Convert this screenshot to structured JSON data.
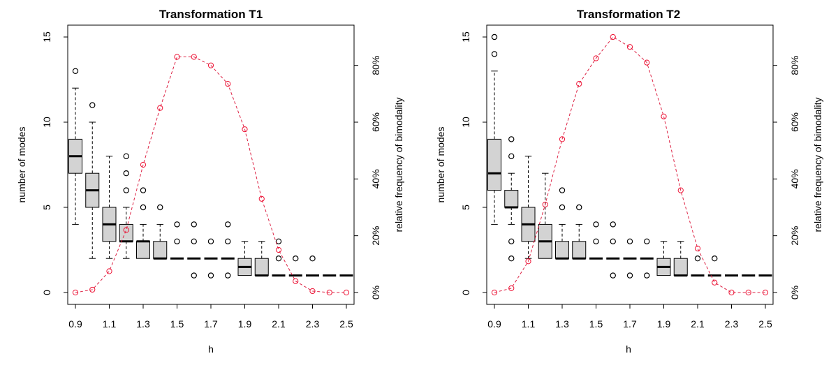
{
  "chart_data": [
    {
      "type": "boxplot+line",
      "title": "Transformation T1",
      "xlabel": "h",
      "ylabel_left": "number of modes",
      "ylabel_right": "relative frequency of bimodality",
      "x_ticks": [
        "0.9",
        "1.1",
        "1.3",
        "1.5",
        "1.7",
        "1.9",
        "2.1",
        "2.3",
        "2.5"
      ],
      "y_ticks_left": [
        "0",
        "5",
        "10",
        "15"
      ],
      "y_ticks_right": [
        "0%",
        "20%",
        "40%",
        "60%",
        "80%"
      ],
      "ylim_left": [
        0,
        15
      ],
      "ylim_right": [
        0,
        90
      ],
      "boxes": [
        {
          "h": 0.9,
          "whisker_low": 4,
          "q1": 7,
          "median": 8,
          "q3": 9,
          "whisker_high": 12,
          "outliers": [
            13
          ]
        },
        {
          "h": 1.0,
          "whisker_low": 2,
          "q1": 5,
          "median": 6,
          "q3": 7,
          "whisker_high": 10,
          "outliers": [
            11
          ]
        },
        {
          "h": 1.1,
          "whisker_low": 2,
          "q1": 3,
          "median": 4,
          "q3": 5,
          "whisker_high": 8,
          "outliers": []
        },
        {
          "h": 1.2,
          "whisker_low": 2,
          "q1": 3,
          "median": 3,
          "q3": 4,
          "whisker_high": 5,
          "outliers": [
            6,
            7,
            8
          ]
        },
        {
          "h": 1.3,
          "whisker_low": 2,
          "q1": 2,
          "median": 3,
          "q3": 3,
          "whisker_high": 4,
          "outliers": [
            5,
            6
          ]
        },
        {
          "h": 1.4,
          "whisker_low": 2,
          "q1": 2,
          "median": 2,
          "q3": 3,
          "whisker_high": 4,
          "outliers": [
            5
          ]
        },
        {
          "h": 1.5,
          "whisker_low": 2,
          "q1": 2,
          "median": 2,
          "q3": 2,
          "whisker_high": 2,
          "outliers": [
            3,
            4
          ]
        },
        {
          "h": 1.6,
          "whisker_low": 2,
          "q1": 2,
          "median": 2,
          "q3": 2,
          "whisker_high": 2,
          "outliers": [
            1,
            3,
            4
          ]
        },
        {
          "h": 1.7,
          "whisker_low": 2,
          "q1": 2,
          "median": 2,
          "q3": 2,
          "whisker_high": 2,
          "outliers": [
            1,
            3
          ]
        },
        {
          "h": 1.8,
          "whisker_low": 2,
          "q1": 2,
          "median": 2,
          "q3": 2,
          "whisker_high": 2,
          "outliers": [
            1,
            3,
            4
          ]
        },
        {
          "h": 1.9,
          "whisker_low": 1,
          "q1": 1,
          "median": 1.5,
          "q3": 2,
          "whisker_high": 3,
          "outliers": []
        },
        {
          "h": 2.0,
          "whisker_low": 1,
          "q1": 1,
          "median": 1,
          "q3": 2,
          "whisker_high": 3,
          "outliers": []
        },
        {
          "h": 2.1,
          "whisker_low": 1,
          "q1": 1,
          "median": 1,
          "q3": 1,
          "whisker_high": 1,
          "outliers": [
            2,
            3
          ]
        },
        {
          "h": 2.2,
          "whisker_low": 1,
          "q1": 1,
          "median": 1,
          "q3": 1,
          "whisker_high": 1,
          "outliers": [
            2
          ]
        },
        {
          "h": 2.3,
          "whisker_low": 1,
          "q1": 1,
          "median": 1,
          "q3": 1,
          "whisker_high": 1,
          "outliers": [
            2
          ]
        },
        {
          "h": 2.4,
          "whisker_low": 1,
          "q1": 1,
          "median": 1,
          "q3": 1,
          "whisker_high": 1,
          "outliers": []
        },
        {
          "h": 2.5,
          "whisker_low": 1,
          "q1": 1,
          "median": 1,
          "q3": 1,
          "whisker_high": 1,
          "outliers": []
        }
      ],
      "bimodality": [
        {
          "h": 0.9,
          "pct": 0
        },
        {
          "h": 1.0,
          "pct": 1
        },
        {
          "h": 1.1,
          "pct": 7.5
        },
        {
          "h": 1.2,
          "pct": 22
        },
        {
          "h": 1.3,
          "pct": 45
        },
        {
          "h": 1.4,
          "pct": 65
        },
        {
          "h": 1.5,
          "pct": 83
        },
        {
          "h": 1.6,
          "pct": 83
        },
        {
          "h": 1.7,
          "pct": 80
        },
        {
          "h": 1.8,
          "pct": 73.5
        },
        {
          "h": 1.9,
          "pct": 57.5
        },
        {
          "h": 2.0,
          "pct": 33
        },
        {
          "h": 2.1,
          "pct": 15
        },
        {
          "h": 2.2,
          "pct": 4
        },
        {
          "h": 2.3,
          "pct": 0.5
        },
        {
          "h": 2.4,
          "pct": 0
        },
        {
          "h": 2.5,
          "pct": 0
        }
      ]
    },
    {
      "type": "boxplot+line",
      "title": "Transformation T2",
      "xlabel": "h",
      "ylabel_left": "number of modes",
      "ylabel_right": "relative frequency of bimodality",
      "x_ticks": [
        "0.9",
        "1.1",
        "1.3",
        "1.5",
        "1.7",
        "1.9",
        "2.1",
        "2.3",
        "2.5"
      ],
      "y_ticks_left": [
        "0",
        "5",
        "10",
        "15"
      ],
      "y_ticks_right": [
        "0%",
        "20%",
        "40%",
        "60%",
        "80%"
      ],
      "ylim_left": [
        0,
        15
      ],
      "ylim_right": [
        0,
        90
      ],
      "boxes": [
        {
          "h": 0.9,
          "whisker_low": 4,
          "q1": 6,
          "median": 7,
          "q3": 9,
          "whisker_high": 13,
          "outliers": [
            14,
            15
          ]
        },
        {
          "h": 1.0,
          "whisker_low": 4,
          "q1": 5,
          "median": 5,
          "q3": 6,
          "whisker_high": 7,
          "outliers": [
            2,
            3,
            8,
            9
          ]
        },
        {
          "h": 1.1,
          "whisker_low": 2,
          "q1": 3,
          "median": 4,
          "q3": 5,
          "whisker_high": 8,
          "outliers": []
        },
        {
          "h": 1.2,
          "whisker_low": 2,
          "q1": 2,
          "median": 3,
          "q3": 4,
          "whisker_high": 7,
          "outliers": []
        },
        {
          "h": 1.3,
          "whisker_low": 2,
          "q1": 2,
          "median": 2,
          "q3": 3,
          "whisker_high": 4,
          "outliers": [
            5,
            6
          ]
        },
        {
          "h": 1.4,
          "whisker_low": 2,
          "q1": 2,
          "median": 2,
          "q3": 3,
          "whisker_high": 4,
          "outliers": [
            5
          ]
        },
        {
          "h": 1.5,
          "whisker_low": 2,
          "q1": 2,
          "median": 2,
          "q3": 2,
          "whisker_high": 2,
          "outliers": [
            3,
            4
          ]
        },
        {
          "h": 1.6,
          "whisker_low": 2,
          "q1": 2,
          "median": 2,
          "q3": 2,
          "whisker_high": 2,
          "outliers": [
            1,
            3,
            4
          ]
        },
        {
          "h": 1.7,
          "whisker_low": 2,
          "q1": 2,
          "median": 2,
          "q3": 2,
          "whisker_high": 2,
          "outliers": [
            1,
            3
          ]
        },
        {
          "h": 1.8,
          "whisker_low": 2,
          "q1": 2,
          "median": 2,
          "q3": 2,
          "whisker_high": 2,
          "outliers": [
            1,
            3
          ]
        },
        {
          "h": 1.9,
          "whisker_low": 1,
          "q1": 1,
          "median": 1.5,
          "q3": 2,
          "whisker_high": 3,
          "outliers": []
        },
        {
          "h": 2.0,
          "whisker_low": 1,
          "q1": 1,
          "median": 1,
          "q3": 2,
          "whisker_high": 3,
          "outliers": []
        },
        {
          "h": 2.1,
          "whisker_low": 1,
          "q1": 1,
          "median": 1,
          "q3": 1,
          "whisker_high": 1,
          "outliers": [
            2
          ]
        },
        {
          "h": 2.2,
          "whisker_low": 1,
          "q1": 1,
          "median": 1,
          "q3": 1,
          "whisker_high": 1,
          "outliers": [
            2
          ]
        },
        {
          "h": 2.3,
          "whisker_low": 1,
          "q1": 1,
          "median": 1,
          "q3": 1,
          "whisker_high": 1,
          "outliers": []
        },
        {
          "h": 2.4,
          "whisker_low": 1,
          "q1": 1,
          "median": 1,
          "q3": 1,
          "whisker_high": 1,
          "outliers": []
        },
        {
          "h": 2.5,
          "whisker_low": 1,
          "q1": 1,
          "median": 1,
          "q3": 1,
          "whisker_high": 1,
          "outliers": []
        }
      ],
      "bimodality": [
        {
          "h": 0.9,
          "pct": 0
        },
        {
          "h": 1.0,
          "pct": 1.5
        },
        {
          "h": 1.1,
          "pct": 11
        },
        {
          "h": 1.2,
          "pct": 31
        },
        {
          "h": 1.3,
          "pct": 54
        },
        {
          "h": 1.4,
          "pct": 73.5
        },
        {
          "h": 1.5,
          "pct": 82.5
        },
        {
          "h": 1.6,
          "pct": 90
        },
        {
          "h": 1.7,
          "pct": 86.5
        },
        {
          "h": 1.8,
          "pct": 81
        },
        {
          "h": 1.9,
          "pct": 62
        },
        {
          "h": 2.0,
          "pct": 36
        },
        {
          "h": 2.1,
          "pct": 15.5
        },
        {
          "h": 2.2,
          "pct": 3.5
        },
        {
          "h": 2.3,
          "pct": 0
        },
        {
          "h": 2.4,
          "pct": 0
        },
        {
          "h": 2.5,
          "pct": 0
        }
      ]
    }
  ],
  "colors": {
    "box_fill": "#d3d3d3",
    "line": "#dd2244",
    "point": "#ee1133",
    "axis": "#000000"
  }
}
